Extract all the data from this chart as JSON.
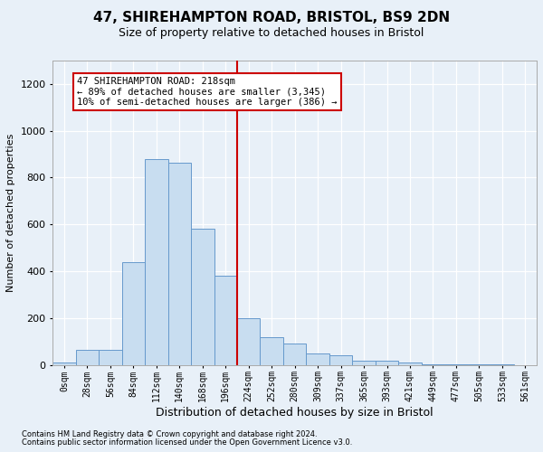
{
  "title": "47, SHIREHAMPTON ROAD, BRISTOL, BS9 2DN",
  "subtitle": "Size of property relative to detached houses in Bristol",
  "xlabel": "Distribution of detached houses by size in Bristol",
  "ylabel": "Number of detached properties",
  "bar_labels": [
    "0sqm",
    "28sqm",
    "56sqm",
    "84sqm",
    "112sqm",
    "140sqm",
    "168sqm",
    "196sqm",
    "224sqm",
    "252sqm",
    "280sqm",
    "309sqm",
    "337sqm",
    "365sqm",
    "393sqm",
    "421sqm",
    "449sqm",
    "477sqm",
    "505sqm",
    "533sqm",
    "561sqm"
  ],
  "bar_values": [
    10,
    65,
    65,
    440,
    880,
    865,
    580,
    380,
    200,
    120,
    90,
    50,
    40,
    20,
    18,
    12,
    3,
    2,
    1,
    1,
    0
  ],
  "bar_color": "#c8ddf0",
  "bar_edge_color": "#6699cc",
  "vline_color": "#cc0000",
  "ylim": [
    0,
    1300
  ],
  "yticks": [
    0,
    200,
    400,
    600,
    800,
    1000,
    1200
  ],
  "annotation_text": "47 SHIREHAMPTON ROAD: 218sqm\n← 89% of detached houses are smaller (3,345)\n10% of semi-detached houses are larger (386) →",
  "annotation_box_color": "#ffffff",
  "annotation_box_edge": "#cc0000",
  "footer_line1": "Contains HM Land Registry data © Crown copyright and database right 2024.",
  "footer_line2": "Contains public sector information licensed under the Open Government Licence v3.0.",
  "background_color": "#e8f0f8",
  "plot_bg_color": "#e8f0f8",
  "title_fontsize": 11,
  "subtitle_fontsize": 9,
  "xlabel_fontsize": 9,
  "ylabel_fontsize": 8,
  "tick_fontsize": 7,
  "annot_fontsize": 7.5,
  "footer_fontsize": 6
}
